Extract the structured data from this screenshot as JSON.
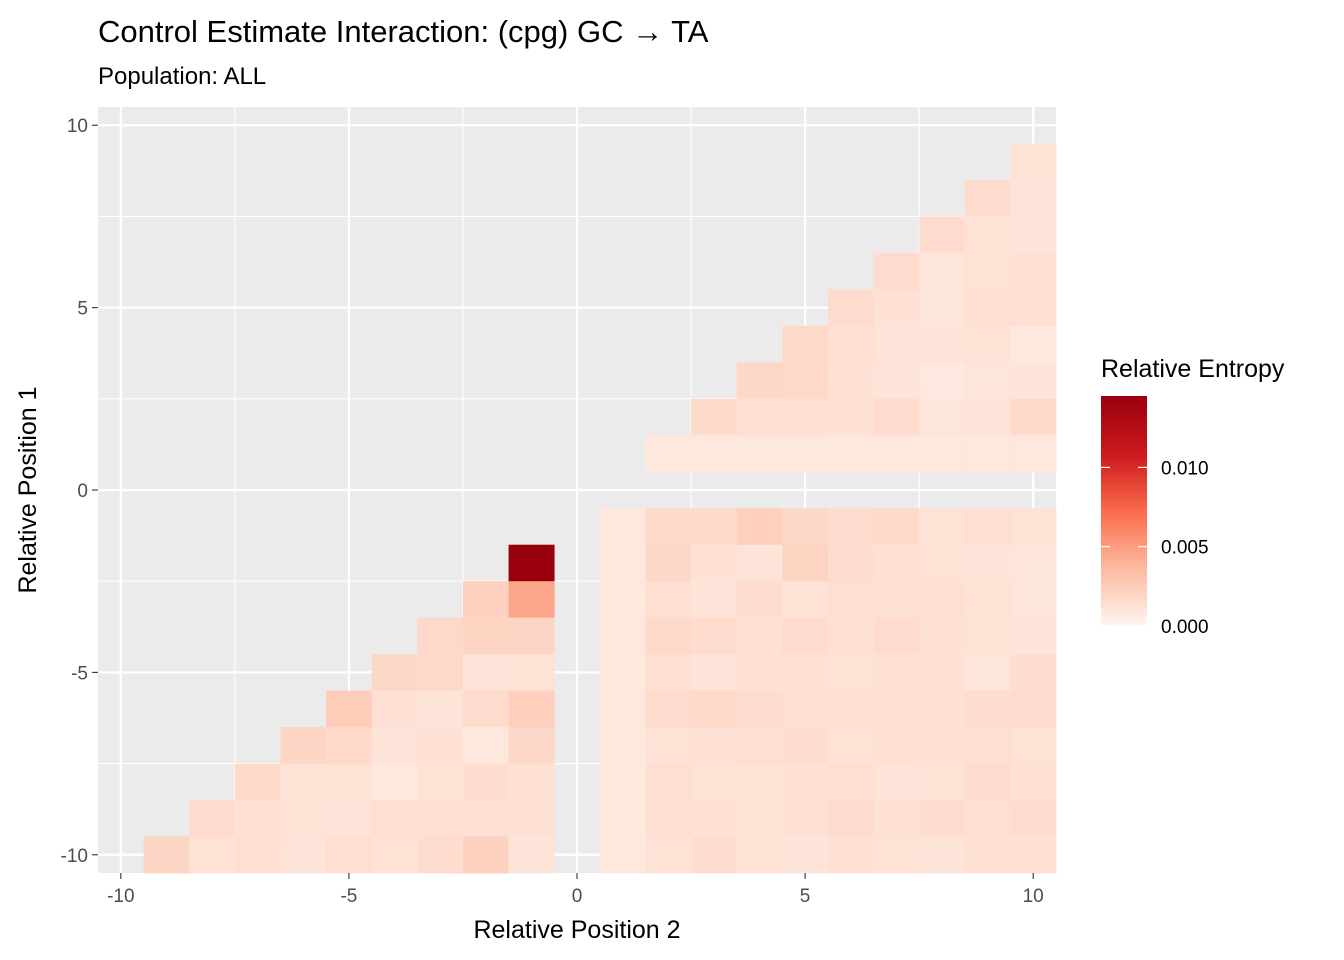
{
  "chart_data": {
    "type": "heatmap",
    "title": "Control Estimate Interaction: (cpg) GC → TA",
    "subtitle": "Population: ALL",
    "xlabel": "Relative Position 2",
    "ylabel": "Relative Position 1",
    "xlim": [
      -10.5,
      10.5
    ],
    "ylim": [
      -10.5,
      10.5
    ],
    "x_ticks": [
      -10,
      -5,
      0,
      5,
      10
    ],
    "y_ticks": [
      -10,
      -5,
      0,
      5,
      10
    ],
    "x_tick_labels": [
      "-10",
      "-5",
      "0",
      "5",
      "10"
    ],
    "y_tick_labels": [
      "-10",
      "-5",
      "0",
      "5",
      "10"
    ],
    "grid": true,
    "legend": {
      "title": "Relative Entropy",
      "position": "right",
      "min": 0,
      "max": 0.0145,
      "ticks": [
        0,
        0.005,
        0.01
      ],
      "tick_labels": [
        "0.000",
        "0.005",
        "0.010"
      ],
      "colors": [
        "#fff5f0",
        "#fcbba1",
        "#fb6a4a",
        "#cb181d",
        "#99000d"
      ]
    },
    "cells": [
      {
        "y": -2,
        "values": [
          [
            -1,
            0.0145
          ]
        ]
      },
      {
        "y": -3,
        "values": [
          [
            -2,
            0.0022
          ],
          [
            -1,
            0.0045
          ]
        ]
      },
      {
        "y": -4,
        "values": [
          [
            -3,
            0.0018
          ],
          [
            -2,
            0.0021
          ],
          [
            -1,
            0.002
          ]
        ]
      },
      {
        "y": -5,
        "values": [
          [
            -4,
            0.0019
          ],
          [
            -3,
            0.0018
          ],
          [
            -2,
            0.0011
          ],
          [
            -1,
            0.0012
          ]
        ]
      },
      {
        "y": -6,
        "values": [
          [
            -5,
            0.0025
          ],
          [
            -4,
            0.0013
          ],
          [
            -3,
            0.0011
          ],
          [
            -2,
            0.0016
          ],
          [
            -1,
            0.0024
          ]
        ]
      },
      {
        "y": -7,
        "values": [
          [
            -6,
            0.002
          ],
          [
            -5,
            0.0018
          ],
          [
            -4,
            0.0011
          ],
          [
            -3,
            0.0013
          ],
          [
            -2,
            0.0009
          ],
          [
            -1,
            0.0019
          ]
        ]
      },
      {
        "y": -8,
        "values": [
          [
            -7,
            0.0017
          ],
          [
            -6,
            0.0012
          ],
          [
            -5,
            0.0012
          ],
          [
            -4,
            0.0009
          ],
          [
            -3,
            0.0012
          ],
          [
            -2,
            0.0015
          ],
          [
            -1,
            0.0013
          ]
        ]
      },
      {
        "y": -9,
        "values": [
          [
            -8,
            0.0016
          ],
          [
            -7,
            0.0013
          ],
          [
            -6,
            0.0012
          ],
          [
            -5,
            0.0011
          ],
          [
            -4,
            0.0014
          ],
          [
            -3,
            0.0014
          ],
          [
            -2,
            0.0013
          ],
          [
            -1,
            0.0013
          ]
        ]
      },
      {
        "y": -10,
        "values": [
          [
            -9,
            0.002
          ],
          [
            -8,
            0.0012
          ],
          [
            -7,
            0.0014
          ],
          [
            -6,
            0.0011
          ],
          [
            -5,
            0.0014
          ],
          [
            -4,
            0.0012
          ],
          [
            -3,
            0.0015
          ],
          [
            -2,
            0.0022
          ],
          [
            -1,
            0.0011
          ]
        ]
      },
      {
        "y": 9,
        "values": [
          [
            10,
            0.0012
          ]
        ]
      },
      {
        "y": 8,
        "values": [
          [
            9,
            0.0016
          ],
          [
            10,
            0.0011
          ]
        ]
      },
      {
        "y": 7,
        "values": [
          [
            8,
            0.0016
          ],
          [
            9,
            0.0012
          ],
          [
            10,
            0.0011
          ]
        ]
      },
      {
        "y": 6,
        "values": [
          [
            7,
            0.0016
          ],
          [
            8,
            0.001
          ],
          [
            9,
            0.0012
          ],
          [
            10,
            0.0013
          ]
        ]
      },
      {
        "y": 5,
        "values": [
          [
            6,
            0.0016
          ],
          [
            7,
            0.0013
          ],
          [
            8,
            0.001
          ],
          [
            9,
            0.0014
          ],
          [
            10,
            0.0014
          ]
        ]
      },
      {
        "y": 4,
        "values": [
          [
            5,
            0.0018
          ],
          [
            6,
            0.0014
          ],
          [
            7,
            0.0011
          ],
          [
            8,
            0.0011
          ],
          [
            9,
            0.0012
          ],
          [
            10,
            0.0009
          ]
        ]
      },
      {
        "y": 3,
        "values": [
          [
            4,
            0.0019
          ],
          [
            5,
            0.0018
          ],
          [
            6,
            0.0013
          ],
          [
            7,
            0.0011
          ],
          [
            8,
            0.0008
          ],
          [
            9,
            0.001
          ],
          [
            10,
            0.0011
          ]
        ]
      },
      {
        "y": 2,
        "values": [
          [
            3,
            0.0017
          ],
          [
            4,
            0.0014
          ],
          [
            5,
            0.0014
          ],
          [
            6,
            0.0013
          ],
          [
            7,
            0.0016
          ],
          [
            8,
            0.001
          ],
          [
            9,
            0.0011
          ],
          [
            10,
            0.0017
          ]
        ]
      },
      {
        "y": 1,
        "values": [
          [
            2,
            0.0009
          ],
          [
            3,
            0.0009
          ],
          [
            4,
            0.0009
          ],
          [
            5,
            0.0009
          ],
          [
            6,
            0.0009
          ],
          [
            7,
            0.0009
          ],
          [
            8,
            0.0009
          ],
          [
            9,
            0.0009
          ],
          [
            10,
            0.0009
          ]
        ]
      },
      {
        "y": -1,
        "values": [
          [
            1,
            0.0009
          ],
          [
            2,
            0.0017
          ],
          [
            3,
            0.0017
          ],
          [
            4,
            0.0024
          ],
          [
            5,
            0.0019
          ],
          [
            6,
            0.0015
          ],
          [
            7,
            0.0017
          ],
          [
            8,
            0.0012
          ],
          [
            9,
            0.0014
          ],
          [
            10,
            0.0012
          ]
        ]
      },
      {
        "y": -2,
        "values": [
          [
            1,
            0.0009
          ],
          [
            2,
            0.0019
          ],
          [
            3,
            0.0013
          ],
          [
            4,
            0.0011
          ],
          [
            5,
            0.0021
          ],
          [
            6,
            0.0015
          ],
          [
            7,
            0.0013
          ],
          [
            8,
            0.0012
          ],
          [
            9,
            0.0011
          ],
          [
            10,
            0.001
          ]
        ]
      },
      {
        "y": -3,
        "values": [
          [
            1,
            0.0009
          ],
          [
            2,
            0.0014
          ],
          [
            3,
            0.0011
          ],
          [
            4,
            0.0015
          ],
          [
            5,
            0.0012
          ],
          [
            6,
            0.0014
          ],
          [
            7,
            0.0013
          ],
          [
            8,
            0.0014
          ],
          [
            9,
            0.0012
          ],
          [
            10,
            0.001
          ]
        ]
      },
      {
        "y": -4,
        "values": [
          [
            1,
            0.0009
          ],
          [
            2,
            0.0017
          ],
          [
            3,
            0.0015
          ],
          [
            4,
            0.0013
          ],
          [
            5,
            0.0016
          ],
          [
            6,
            0.0013
          ],
          [
            7,
            0.0016
          ],
          [
            8,
            0.0013
          ],
          [
            9,
            0.0012
          ],
          [
            10,
            0.0011
          ]
        ]
      },
      {
        "y": -5,
        "values": [
          [
            1,
            0.0009
          ],
          [
            2,
            0.0014
          ],
          [
            3,
            0.0011
          ],
          [
            4,
            0.0013
          ],
          [
            5,
            0.0013
          ],
          [
            6,
            0.0012
          ],
          [
            7,
            0.0013
          ],
          [
            8,
            0.0013
          ],
          [
            9,
            0.001
          ],
          [
            10,
            0.0015
          ]
        ]
      },
      {
        "y": -6,
        "values": [
          [
            1,
            0.0009
          ],
          [
            2,
            0.0016
          ],
          [
            3,
            0.0017
          ],
          [
            4,
            0.0015
          ],
          [
            5,
            0.0014
          ],
          [
            6,
            0.0013
          ],
          [
            7,
            0.0013
          ],
          [
            8,
            0.0013
          ],
          [
            9,
            0.0015
          ],
          [
            10,
            0.0016
          ]
        ]
      },
      {
        "y": -7,
        "values": [
          [
            1,
            0.0009
          ],
          [
            2,
            0.0012
          ],
          [
            3,
            0.0013
          ],
          [
            4,
            0.0014
          ],
          [
            5,
            0.0015
          ],
          [
            6,
            0.0012
          ],
          [
            7,
            0.0013
          ],
          [
            8,
            0.0013
          ],
          [
            9,
            0.0014
          ],
          [
            10,
            0.0012
          ]
        ]
      },
      {
        "y": -8,
        "values": [
          [
            1,
            0.0009
          ],
          [
            2,
            0.0014
          ],
          [
            3,
            0.0012
          ],
          [
            4,
            0.0012
          ],
          [
            5,
            0.0013
          ],
          [
            6,
            0.0014
          ],
          [
            7,
            0.0011
          ],
          [
            8,
            0.0012
          ],
          [
            9,
            0.0016
          ],
          [
            10,
            0.0013
          ]
        ]
      },
      {
        "y": -9,
        "values": [
          [
            1,
            0.0009
          ],
          [
            2,
            0.0014
          ],
          [
            3,
            0.0013
          ],
          [
            4,
            0.0012
          ],
          [
            5,
            0.0013
          ],
          [
            6,
            0.0016
          ],
          [
            7,
            0.0013
          ],
          [
            8,
            0.0015
          ],
          [
            9,
            0.0014
          ],
          [
            10,
            0.0015
          ]
        ]
      },
      {
        "y": -10,
        "values": [
          [
            1,
            0.0009
          ],
          [
            2,
            0.0012
          ],
          [
            3,
            0.0015
          ],
          [
            4,
            0.0012
          ],
          [
            5,
            0.0011
          ],
          [
            6,
            0.0013
          ],
          [
            7,
            0.0012
          ],
          [
            8,
            0.0011
          ],
          [
            9,
            0.0013
          ],
          [
            10,
            0.0013
          ]
        ]
      }
    ]
  }
}
